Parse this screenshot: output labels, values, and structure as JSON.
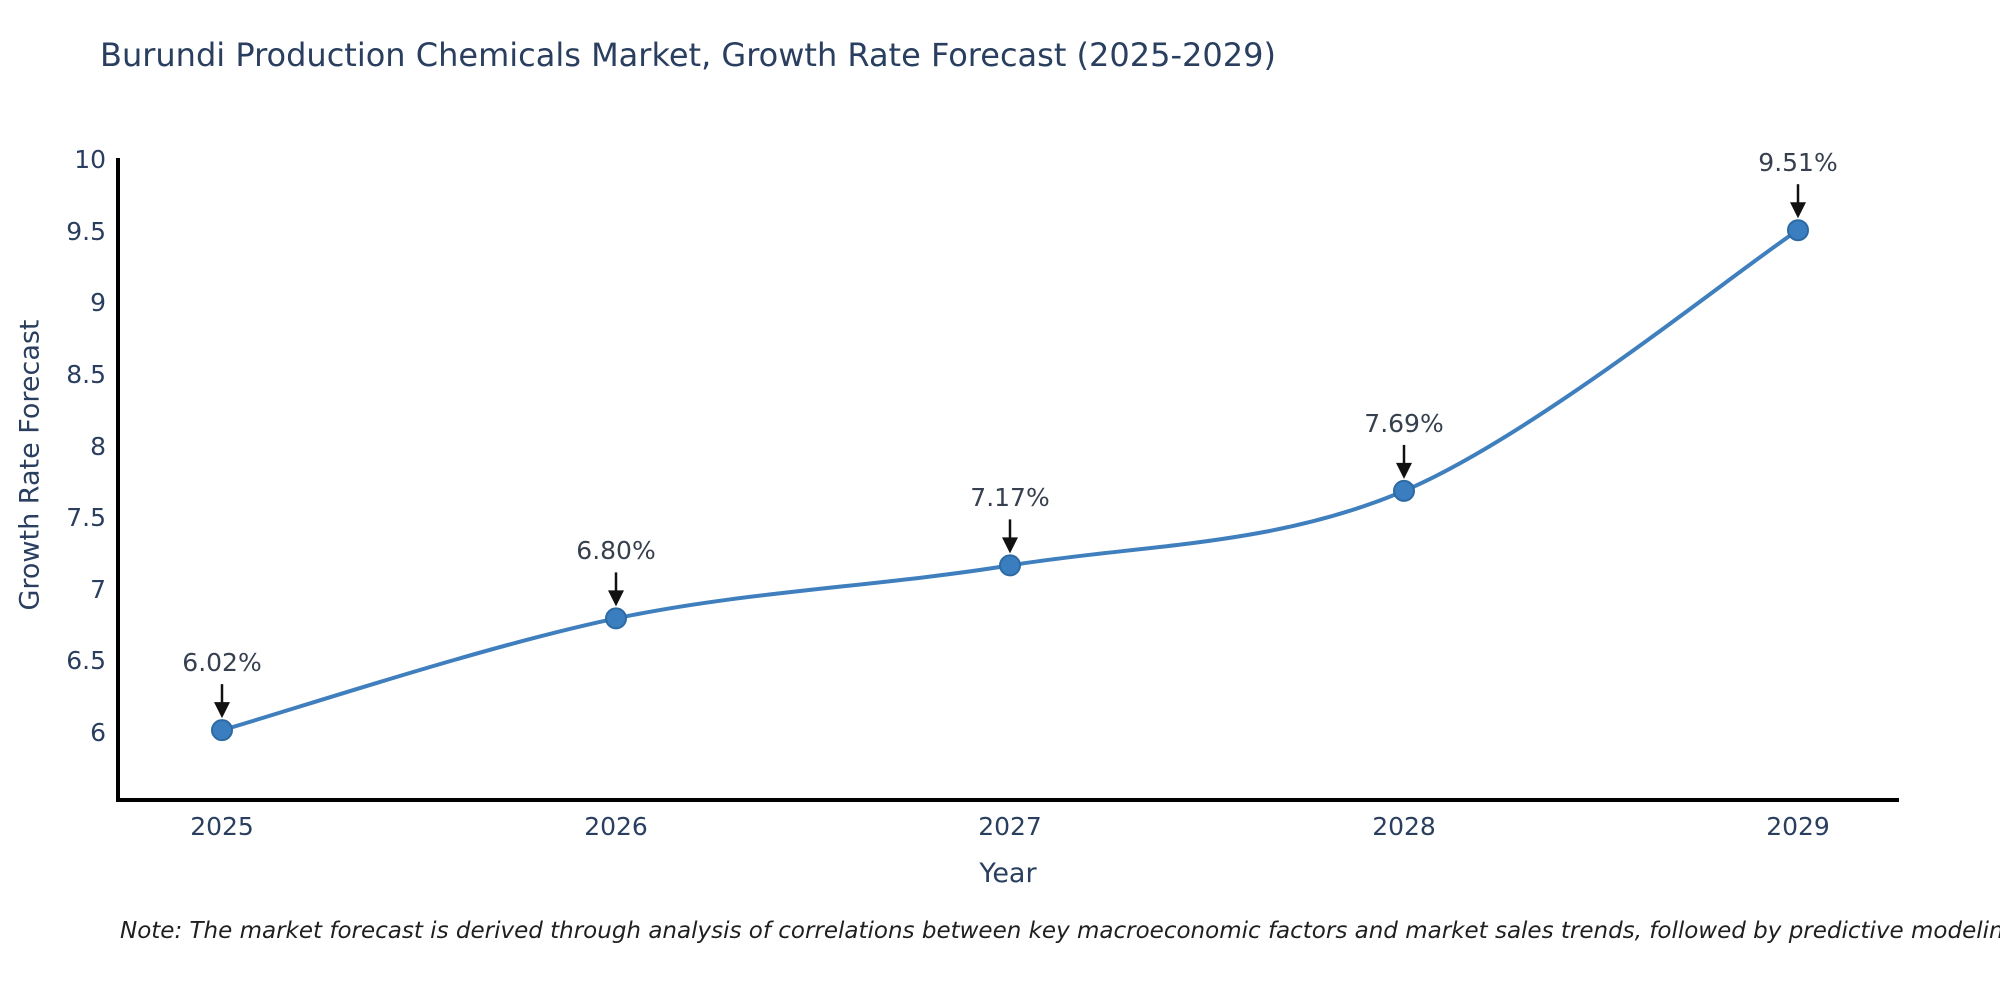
{
  "title": "Burundi Production Chemicals Market, Growth Rate Forecast (2025-2029)",
  "note": "Note: The market forecast is derived through analysis of correlations between key macroeconomic factors and market sales trends, followed by predictive modeling to project future sales",
  "chart_data": {
    "type": "line",
    "title": "Burundi Production Chemicals Market, Growth Rate Forecast (2025-2029)",
    "categories": [
      "2025",
      "2026",
      "2027",
      "2028",
      "2029"
    ],
    "values": [
      6.02,
      6.8,
      7.17,
      7.69,
      9.51
    ],
    "annotations": [
      "6.02%",
      "6.80%",
      "7.17%",
      "7.69%",
      "9.51%"
    ],
    "xlabel": "Year",
    "ylabel": "Growth Rate Forecast",
    "ylim": [
      5.5,
      10.05
    ],
    "yticks": [
      6,
      6.5,
      7,
      7.5,
      8,
      8.5,
      9,
      9.5,
      10
    ],
    "ytick_labels": [
      "6",
      "6.5",
      "7",
      "7.5",
      "8",
      "8.5",
      "9",
      "9.5",
      "10"
    ],
    "grid": false,
    "legend": false,
    "line_shape": "spline",
    "colors": {
      "line": "#3f7fbe",
      "marker": "#3a7ebf",
      "marker_edge": "#2d6aa3",
      "axis": "#000000",
      "text": "#2a3f5f",
      "arrow": "#111111",
      "background": "#ffffff"
    }
  }
}
